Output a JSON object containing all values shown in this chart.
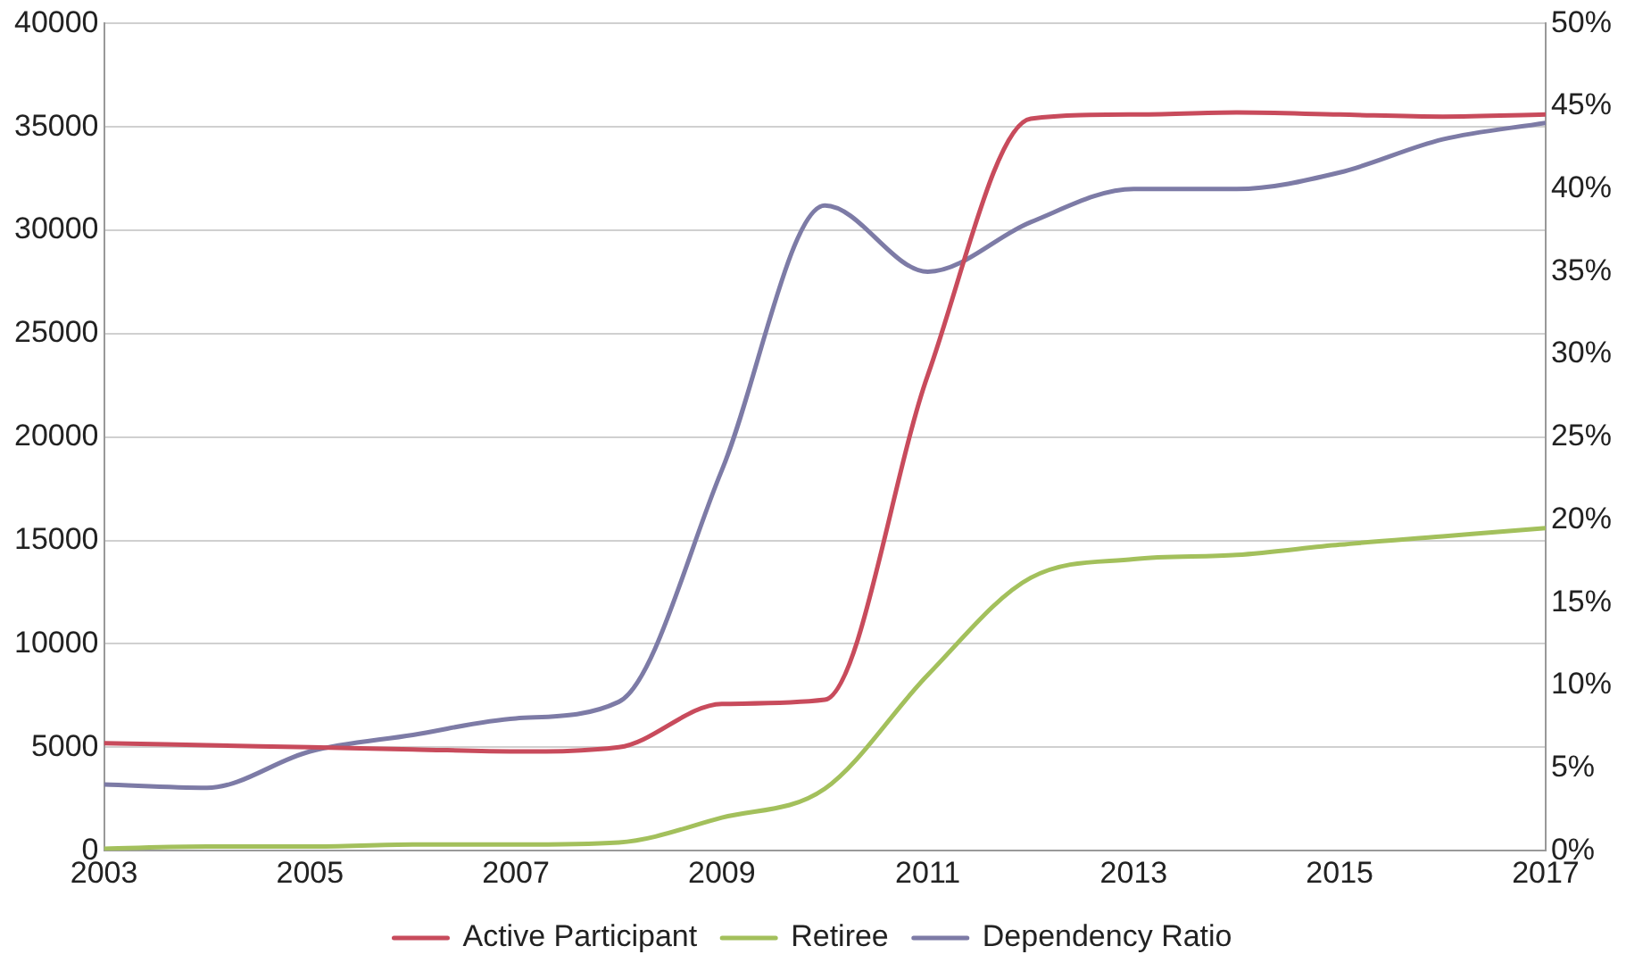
{
  "chart_data": {
    "type": "line",
    "x": [
      2003,
      2004,
      2005,
      2006,
      2007,
      2008,
      2009,
      2010,
      2011,
      2012,
      2013,
      2014,
      2015,
      2016,
      2017
    ],
    "series": [
      {
        "name": "Active Participant",
        "color": "#c84b5c",
        "values": [
          5200,
          5100,
          5000,
          4900,
          4800,
          5000,
          7100,
          7300,
          23000,
          35400,
          35600,
          35700,
          35600,
          35500,
          35600
        ]
      },
      {
        "name": "Retiree",
        "color": "#a3c05c",
        "values": [
          100,
          200,
          200,
          300,
          300,
          400,
          1600,
          3000,
          8500,
          13200,
          14100,
          14300,
          14800,
          15200,
          15600
        ]
      },
      {
        "name": "Dependency Ratio",
        "color": "#7d7ba6",
        "axis": "y2",
        "values": [
          4,
          3.8,
          6,
          7,
          8,
          9,
          23,
          39,
          35,
          38,
          40,
          40,
          41,
          43,
          44
        ]
      }
    ],
    "xlim": [
      2003,
      2017
    ],
    "xticks": [
      2003,
      2005,
      2007,
      2009,
      2011,
      2013,
      2015,
      2017
    ],
    "ylim": [
      0,
      40000
    ],
    "yticks": [
      0,
      5000,
      10000,
      15000,
      20000,
      25000,
      30000,
      35000,
      40000
    ],
    "y2lim": [
      0,
      50
    ],
    "y2ticks": [
      {
        "value": 0,
        "label": "0%"
      },
      {
        "value": 5,
        "label": "5%"
      },
      {
        "value": 10,
        "label": "10%"
      },
      {
        "value": 15,
        "label": "15%"
      },
      {
        "value": 20,
        "label": "20%"
      },
      {
        "value": 25,
        "label": "25%"
      },
      {
        "value": 30,
        "label": "30%"
      },
      {
        "value": 35,
        "label": "35%"
      },
      {
        "value": 40,
        "label": "40%"
      },
      {
        "value": 45,
        "label": "45%"
      },
      {
        "value": 50,
        "label": "50%"
      }
    ],
    "grid": "y",
    "legend": "bottom",
    "marker": "none",
    "line_style": "solid"
  }
}
